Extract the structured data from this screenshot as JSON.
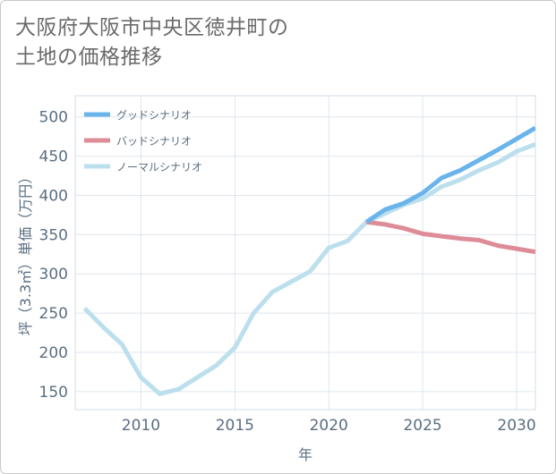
{
  "title_line1": "大阪府大阪市中央区徳井町の",
  "title_line2": "土地の価格推移",
  "chart_data": {
    "type": "line",
    "title": "大阪府大阪市中央区徳井町の土地の価格推移",
    "xlabel": "年",
    "ylabel": "坪（3.3㎡）単価（万円）",
    "xlim": [
      2006.5,
      2031
    ],
    "ylim": [
      127,
      527
    ],
    "x_ticks": [
      2010,
      2015,
      2020,
      2025,
      2030
    ],
    "y_ticks": [
      150,
      200,
      250,
      300,
      350,
      400,
      450,
      500
    ],
    "grid": true,
    "legend_position": "top-left",
    "series": [
      {
        "name": "グッドシナリオ",
        "color": "#6ab4ec",
        "x": [
          2022,
          2023,
          2024,
          2025,
          2026,
          2027,
          2028,
          2029,
          2030,
          2031
        ],
        "y": [
          366,
          382,
          390,
          403,
          422,
          432,
          445,
          458,
          472,
          486
        ]
      },
      {
        "name": "バッドシナリオ",
        "color": "#de8c97",
        "x": [
          2022,
          2023,
          2024,
          2025,
          2026,
          2027,
          2028,
          2029,
          2030,
          2031
        ],
        "y": [
          366,
          363,
          358,
          351,
          348,
          345,
          343,
          336,
          332,
          328
        ]
      },
      {
        "name": "ノーマルシナリオ",
        "color": "#bcdfee",
        "x": [
          2007,
          2008,
          2009,
          2010,
          2011,
          2012,
          2013,
          2014,
          2015,
          2016,
          2017,
          2018,
          2019,
          2020,
          2021,
          2022,
          2023,
          2024,
          2025,
          2026,
          2027,
          2028,
          2029,
          2030,
          2031
        ],
        "y": [
          256,
          232,
          210,
          168,
          147,
          153,
          168,
          183,
          206,
          250,
          277,
          290,
          303,
          333,
          342,
          366,
          377,
          388,
          396,
          411,
          420,
          432,
          442,
          456,
          465
        ]
      }
    ]
  }
}
